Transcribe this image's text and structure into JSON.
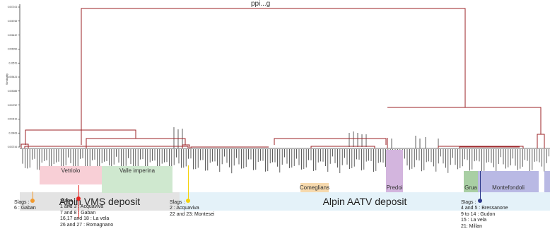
{
  "chart": {
    "partial_title": "ppi...g",
    "y_tick_labels": [
      "0.007104",
      "0.006768",
      "0.006432",
      "0.006096",
      "0.00576",
      "0.005424",
      "0.005088",
      "0.004752",
      "0.004416",
      "0.00408",
      "0.003744"
    ],
    "y_axis_label": "Similarity"
  },
  "groups": [
    {
      "label": "Vetriolo",
      "color": "#f8cfd6"
    },
    {
      "label": "Valle imperina",
      "color": "#cfe8cf"
    },
    {
      "label": "Comeglians",
      "color": "#f6d9ad"
    },
    {
      "label": "Predoi",
      "color": "#d3b5de"
    },
    {
      "label": "Grua",
      "color": "#a9cfa4"
    },
    {
      "label": "Montefondoli",
      "color": "#b9b9e4"
    }
  ],
  "deposits": {
    "vms": {
      "label": "Alpin VMS deposit",
      "color": "#e3e3e3"
    },
    "aatv": {
      "label": "Alpin AATV deposit",
      "color": "#e4f2f9"
    }
  },
  "slags": [
    {
      "title": "Slags :",
      "lines": [
        "6 : Gaban"
      ],
      "color": "#f29a2e"
    },
    {
      "title": "Slags :",
      "lines": [
        "1 and 3 : Acquaviva",
        "7 and 8 : Gaban",
        "16,17 and 18 : La vela",
        "26 and 27 : Romagnano"
      ],
      "color": "#e52421"
    },
    {
      "title": "Slags :",
      "lines": [
        "2 : Acquaviva",
        "22 and 23: Montesei"
      ],
      "color": "#f5d20a"
    },
    {
      "title": "Slags :",
      "lines": [
        "4 and 5 : Bressanone",
        "9 to 14 : Gudon",
        "15 : La vela",
        "21: Millan"
      ],
      "color": "#2d3a8c"
    }
  ],
  "colors": {
    "dendrogram": "#9b2226",
    "axis": "#333333"
  }
}
